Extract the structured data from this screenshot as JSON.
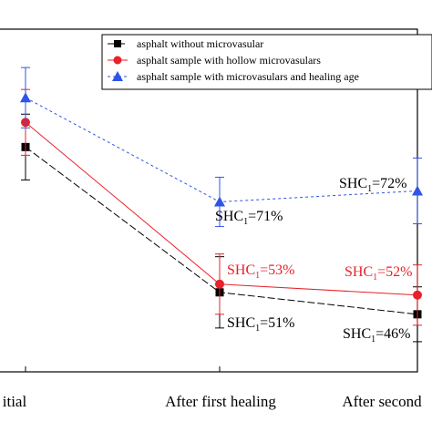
{
  "chart_data": {
    "type": "line",
    "categories": [
      "Initial",
      "After first healing",
      "After second healing"
    ],
    "visible_tick_labels": [
      "itial",
      "After first healing",
      "After second"
    ],
    "series": [
      {
        "name": "asphalt without microvasular",
        "color": "#000000",
        "marker": "square",
        "dash": "8,3",
        "values": [
          102,
          49,
          41
        ],
        "errors": [
          12,
          13,
          10
        ]
      },
      {
        "name": "asphalt sample with hollow microvasulars",
        "color": "#e8212b",
        "marker": "circle",
        "dash": "none",
        "values": [
          111,
          52,
          48
        ],
        "errors": [
          12,
          11,
          11
        ]
      },
      {
        "name": "asphalt sample with microvasulars and healing age",
        "color": "#2f55e6",
        "marker": "triangle",
        "dash": "3,3",
        "values": [
          120,
          82,
          86
        ],
        "errors": [
          11,
          9,
          12
        ]
      }
    ],
    "annotations": [
      {
        "series": 2,
        "category": 1,
        "text": "71%",
        "prefix": "SHC",
        "sub": "1",
        "color": "#000000"
      },
      {
        "series": 2,
        "category": 2,
        "text": "72%",
        "prefix": "SHC",
        "sub": "1",
        "color": "#000000"
      },
      {
        "series": 1,
        "category": 1,
        "text": "53%",
        "prefix": "SHC",
        "sub": "1",
        "color": "#e8212b"
      },
      {
        "series": 1,
        "category": 2,
        "text": "52%",
        "prefix": "SHC",
        "sub": "1",
        "color": "#e8212b"
      },
      {
        "series": 0,
        "category": 1,
        "text": "51%",
        "prefix": "SHC",
        "sub": "1",
        "color": "#000000"
      },
      {
        "series": 0,
        "category": 2,
        "text": "46%",
        "prefix": "SHC",
        "sub": "1",
        "color": "#000000"
      }
    ],
    "ylim": [
      20,
      145
    ],
    "grid": false,
    "legend_position": "top-right"
  }
}
